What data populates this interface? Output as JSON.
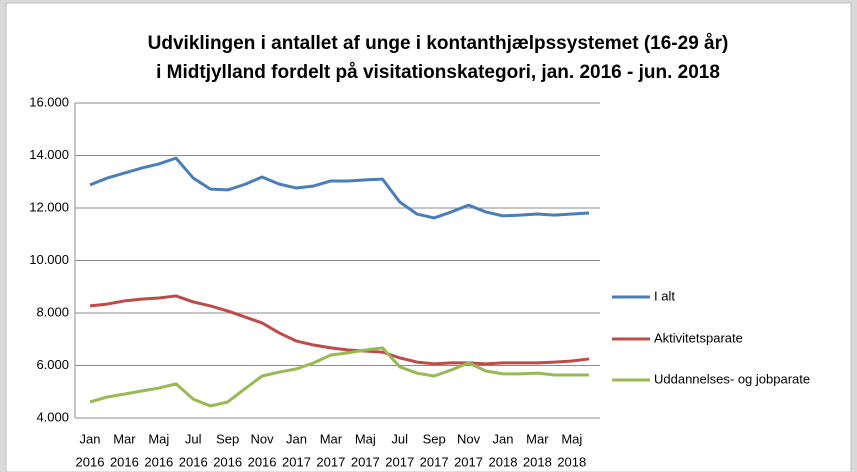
{
  "chart_data": {
    "type": "line",
    "title": [
      "Udviklingen i antallet af unge i kontanthjælpssystemet (16-29 år)",
      "i Midtjylland fordelt på visitationskategori, jan. 2016 - jun. 2018"
    ],
    "categories": [
      [
        "Jan",
        "2016"
      ],
      null,
      [
        "Mar",
        "2016"
      ],
      null,
      [
        "Maj",
        "2016"
      ],
      null,
      [
        "Jul",
        "2016"
      ],
      null,
      [
        "Sep",
        "2016"
      ],
      null,
      [
        "Nov",
        "2016"
      ],
      null,
      [
        "Jan",
        "2017"
      ],
      null,
      [
        "Mar",
        "2017"
      ],
      null,
      [
        "Maj",
        "2017"
      ],
      null,
      [
        "Jul",
        "2017"
      ],
      null,
      [
        "Sep",
        "2017"
      ],
      null,
      [
        "Nov",
        "2017"
      ],
      null,
      [
        "Jan",
        "2018"
      ],
      null,
      [
        "Mar",
        "2018"
      ],
      null,
      [
        "Maj",
        "2018"
      ],
      null
    ],
    "series": [
      {
        "name": "I alt",
        "color": "#4a7ebb",
        "values": [
          12880,
          13140,
          13330,
          13520,
          13680,
          13900,
          13140,
          12720,
          12690,
          12900,
          13180,
          12910,
          12760,
          12840,
          13030,
          13030,
          13070,
          13100,
          12230,
          11770,
          11620,
          11850,
          12110,
          11850,
          11700,
          11730,
          11770,
          11730,
          11770,
          11810
        ]
      },
      {
        "name": "Aktivitetsparate",
        "color": "#be4b48",
        "values": [
          8270,
          8340,
          8460,
          8530,
          8570,
          8650,
          8420,
          8270,
          8080,
          7850,
          7620,
          7240,
          6930,
          6780,
          6670,
          6590,
          6550,
          6510,
          6290,
          6130,
          6060,
          6100,
          6100,
          6060,
          6100,
          6100,
          6100,
          6130,
          6170,
          6250
        ]
      },
      {
        "name": "Uddannelses- og jobparate",
        "color": "#98b954",
        "values": [
          4610,
          4800,
          4910,
          5030,
          5140,
          5300,
          4720,
          4460,
          4610,
          5110,
          5600,
          5750,
          5870,
          6100,
          6400,
          6480,
          6590,
          6670,
          5950,
          5710,
          5600,
          5830,
          6100,
          5790,
          5680,
          5680,
          5710,
          5640,
          5640,
          5640
        ]
      }
    ],
    "ylim": [
      4000,
      16000
    ],
    "yticks": [
      {
        "value": 4000,
        "label": "4.000"
      },
      {
        "value": 6000,
        "label": "6.000"
      },
      {
        "value": 8000,
        "label": "8.000"
      },
      {
        "value": 10000,
        "label": "10.000"
      },
      {
        "value": 12000,
        "label": "12.000"
      },
      {
        "value": 14000,
        "label": "14.000"
      },
      {
        "value": 16000,
        "label": "16.000"
      }
    ],
    "grid": true,
    "legend": "right"
  }
}
